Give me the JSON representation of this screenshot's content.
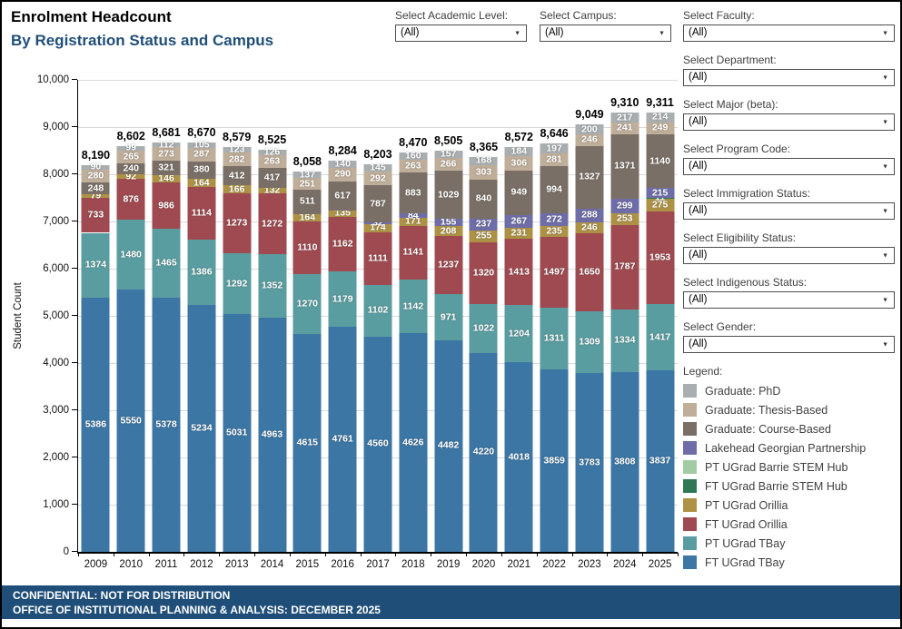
{
  "header": {
    "title": "Enrolment Headcount",
    "subtitle": "By Registration Status and Campus"
  },
  "top_filters": [
    {
      "label": "Select Academic Level:",
      "value": "(All)"
    },
    {
      "label": "Select Campus:",
      "value": "(All)"
    }
  ],
  "side_filters": [
    {
      "label": "Select Faculty:",
      "value": "(All)"
    },
    {
      "label": "Select Department:",
      "value": "(All)"
    },
    {
      "label": "Select Major (beta):",
      "value": "(All)"
    },
    {
      "label": "Select Program Code:",
      "value": "(All)"
    },
    {
      "label": "Select Immigration Status:",
      "value": "(All)"
    },
    {
      "label": "Select Eligibility Status:",
      "value": "(All)"
    },
    {
      "label": "Select Indigenous Status:",
      "value": "(All)"
    },
    {
      "label": "Select Gender:",
      "value": "(All)"
    }
  ],
  "legend": {
    "title": "Legend:",
    "items": [
      {
        "label": "Graduate: PhD",
        "color": "#A9AEB0"
      },
      {
        "label": "Graduate: Thesis-Based",
        "color": "#BFAE99"
      },
      {
        "label": "Graduate: Course-Based",
        "color": "#796F66"
      },
      {
        "label": "Lakehead Georgian Partnership",
        "color": "#6E6DA8"
      },
      {
        "label": "PT UGrad Barrie STEM Hub",
        "color": "#A3CBA3"
      },
      {
        "label": "FT UGrad Barrie STEM Hub",
        "color": "#2F7757"
      },
      {
        "label": "PT UGrad Orillia",
        "color": "#AD9245"
      },
      {
        "label": "FT UGrad Orillia",
        "color": "#9E4A50"
      },
      {
        "label": "PT UGrad TBay",
        "color": "#5A9DA0"
      },
      {
        "label": "FT UGrad TBay",
        "color": "#3C76A4"
      }
    ]
  },
  "footer": {
    "line1": "CONFIDENTIAL: NOT FOR DISTRIBUTION",
    "line2": "OFFICE OF INSTITUTIONAL PLANNING & ANALYSIS: DECEMBER 2025"
  },
  "chart_data": {
    "type": "bar",
    "stacked": true,
    "ylabel": "Student Count",
    "ylim": [
      0,
      10000
    ],
    "ytick_interval": 1000,
    "grid": true,
    "legend_position": "right",
    "categories": [
      "2009",
      "2010",
      "2011",
      "2012",
      "2013",
      "2014",
      "2015",
      "2016",
      "2017",
      "2018",
      "2019",
      "2020",
      "2021",
      "2022",
      "2023",
      "2024",
      "2025"
    ],
    "totals": [
      "8,190",
      "8,602",
      "8,681",
      "8,670",
      "8,579",
      "8,525",
      "8,058",
      "8,284",
      "8,203",
      "8,470",
      "8,505",
      "8,365",
      "8,572",
      "8,646",
      "9,049",
      "9,310",
      "9,311"
    ],
    "series": [
      {
        "name": "FT UGrad TBay",
        "color": "#3C76A4",
        "values": [
          5386,
          5550,
          5378,
          5234,
          5031,
          4963,
          4615,
          4761,
          4560,
          4626,
          4482,
          4220,
          4018,
          3859,
          3783,
          3808,
          3837
        ]
      },
      {
        "name": "PT UGrad TBay",
        "color": "#5A9DA0",
        "values": [
          1374,
          1480,
          1465,
          1386,
          1292,
          1352,
          1270,
          1179,
          1102,
          1142,
          971,
          1022,
          1204,
          1311,
          1309,
          1334,
          1417
        ]
      },
      {
        "name": "FT UGrad Orillia",
        "color": "#9E4A50",
        "values": [
          733,
          876,
          986,
          1114,
          1273,
          1272,
          1110,
          1162,
          1111,
          1141,
          1237,
          1320,
          1413,
          1497,
          1650,
          1787,
          1953
        ]
      },
      {
        "name": "PT UGrad Orillia",
        "color": "#AD9245",
        "values": [
          79,
          92,
          146,
          164,
          166,
          132,
          164,
          135,
          174,
          171,
          208,
          255,
          231,
          235,
          246,
          253,
          275
        ]
      },
      {
        "name": "FT UGrad Barrie STEM Hub",
        "color": "#2F7757",
        "values": [
          0,
          0,
          0,
          0,
          0,
          0,
          0,
          0,
          0,
          0,
          0,
          0,
          0,
          0,
          0,
          0,
          11
        ]
      },
      {
        "name": "Lakehead Georgian Partnership",
        "color": "#6E6DA8",
        "values": [
          0,
          0,
          0,
          0,
          0,
          0,
          0,
          0,
          32,
          84,
          155,
          237,
          267,
          272,
          288,
          299,
          215
        ]
      },
      {
        "name": "Graduate: Course-Based",
        "color": "#796F66",
        "values": [
          248,
          240,
          321,
          380,
          412,
          417,
          511,
          617,
          787,
          883,
          1029,
          840,
          949,
          994,
          1327,
          1371,
          1140
        ]
      },
      {
        "name": "Graduate: Thesis-Based",
        "color": "#BFAE99",
        "values": [
          280,
          265,
          273,
          287,
          282,
          263,
          251,
          290,
          292,
          263,
          266,
          303,
          306,
          281,
          246,
          241,
          249
        ]
      },
      {
        "name": "Graduate: PhD",
        "color": "#A9AEB0",
        "values": [
          90,
          99,
          112,
          105,
          123,
          126,
          137,
          140,
          145,
          160,
          157,
          168,
          184,
          197,
          200,
          217,
          214
        ]
      }
    ]
  }
}
